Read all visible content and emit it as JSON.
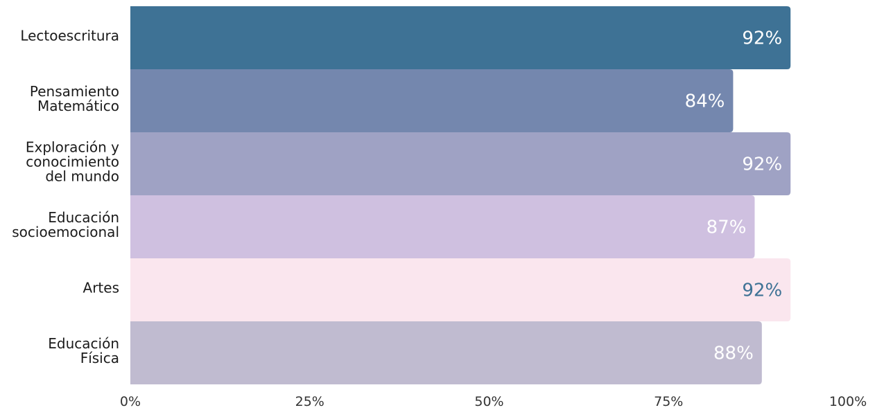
{
  "chart_data": {
    "type": "bar",
    "orientation": "horizontal",
    "title": "",
    "xlabel": "",
    "ylabel": "",
    "xlim": [
      0,
      100
    ],
    "grid": false,
    "legend": "none",
    "categories": [
      [
        "Lectoescritura"
      ],
      [
        "Pensamiento",
        "Matemático"
      ],
      [
        "Exploración y",
        "conocimiento",
        "del mundo"
      ],
      [
        "Educación",
        "socioemocional"
      ],
      [
        "Artes"
      ],
      [
        "Educación",
        "Física"
      ]
    ],
    "values": [
      92,
      84,
      92,
      87,
      92,
      88
    ],
    "value_labels": [
      "92%",
      "84%",
      "92%",
      "87%",
      "92%",
      "88%"
    ],
    "bar_colors": [
      "#3e7295",
      "#7487ae",
      "#9fa2c4",
      "#cfc0e0",
      "#fae6ee",
      "#c0bbd0"
    ],
    "label_colors": [
      "#ffffff",
      "#ffffff",
      "#ffffff",
      "#ffffff",
      "#3e7295",
      "#ffffff"
    ],
    "ticks": [
      0,
      25,
      50,
      75,
      100
    ],
    "tick_labels": [
      "0%",
      "25%",
      "50%",
      "75%",
      "100%"
    ]
  }
}
